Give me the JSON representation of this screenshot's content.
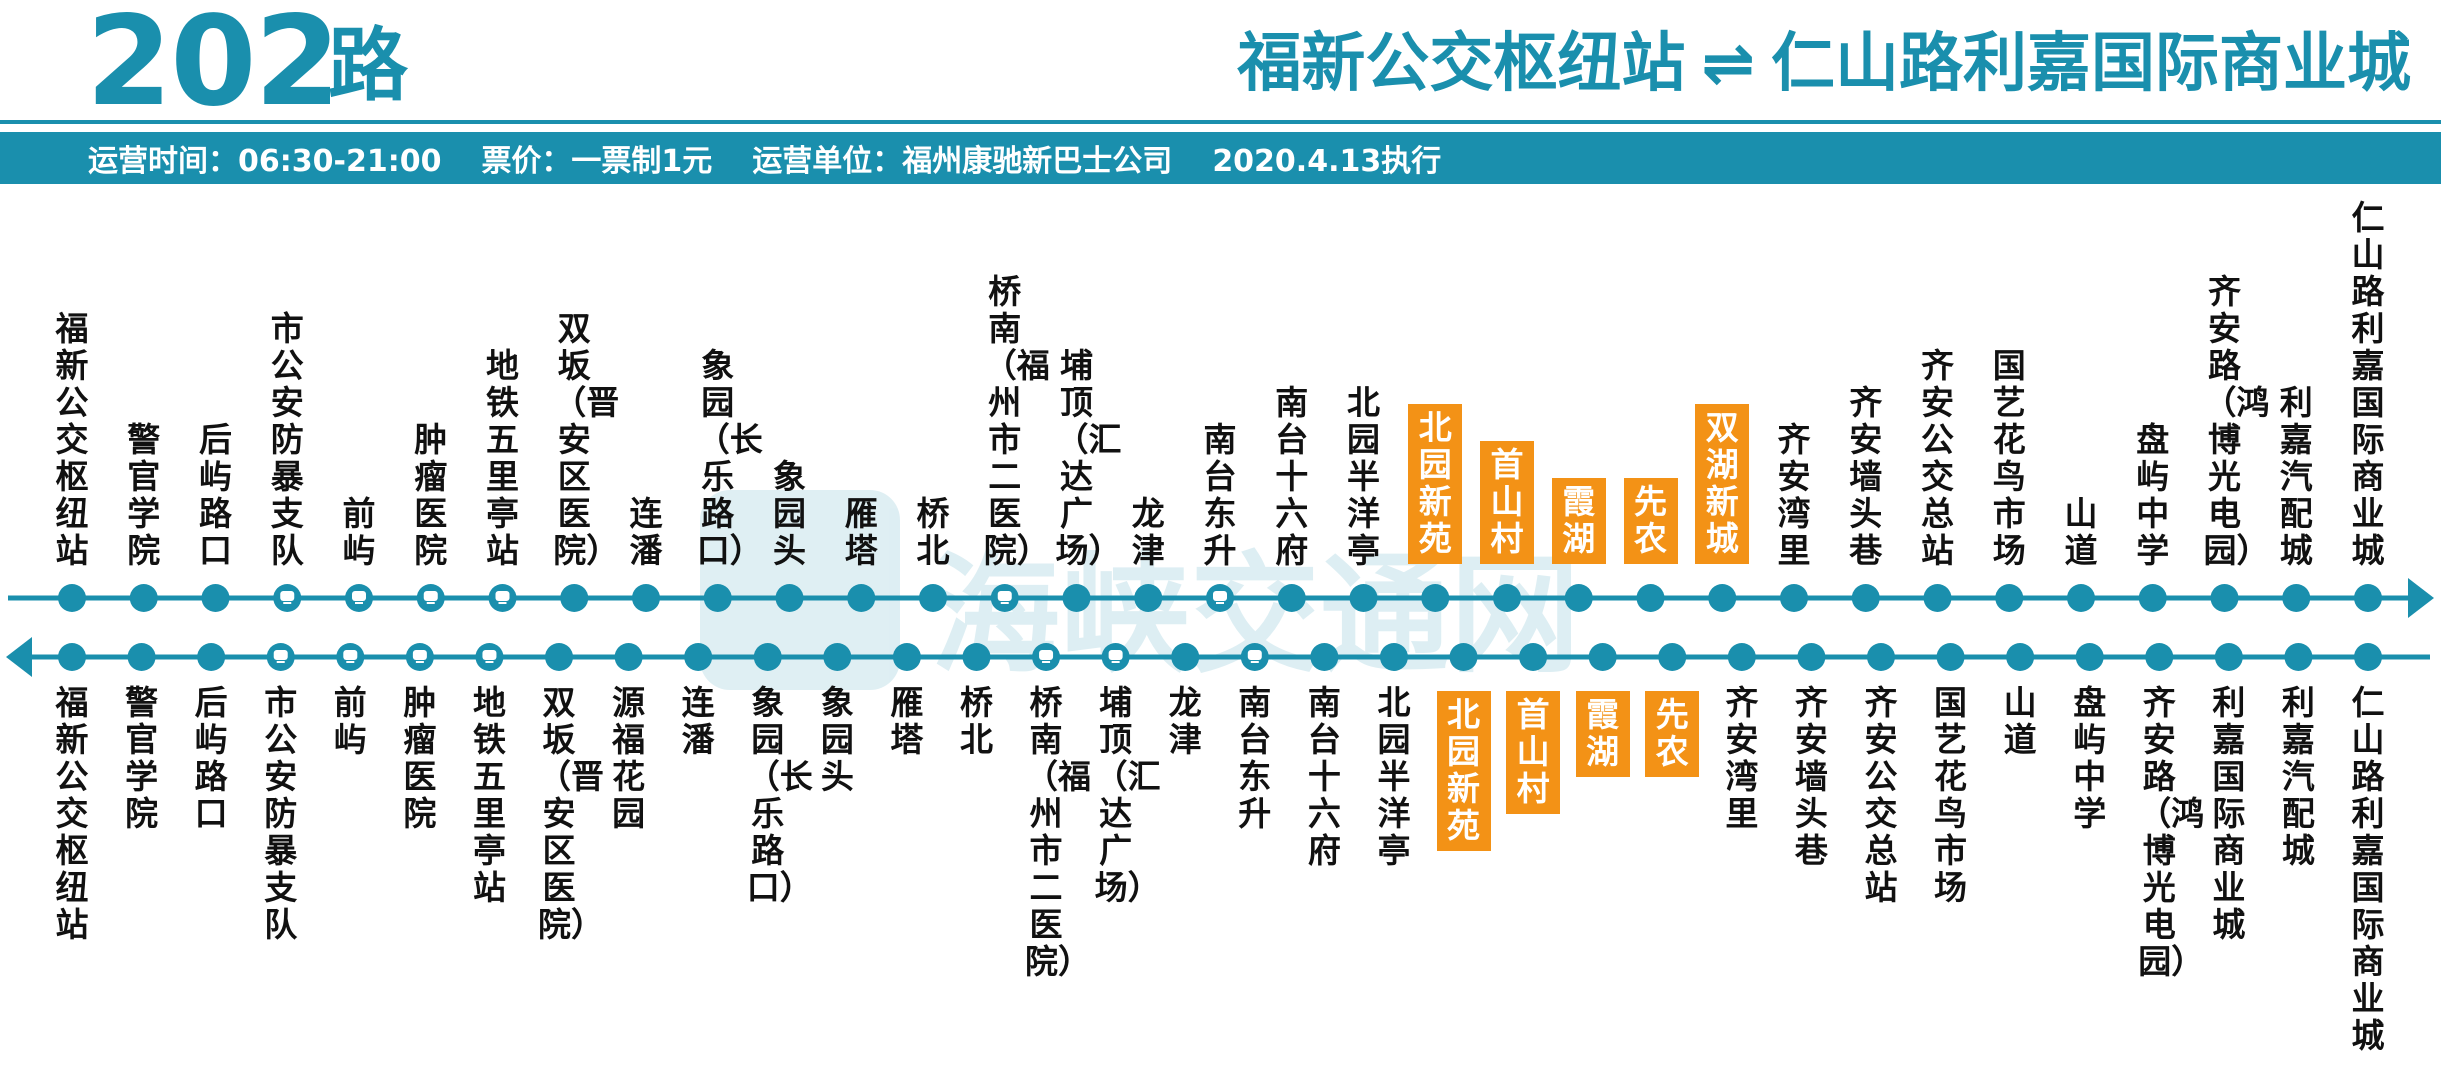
{
  "header": {
    "route_number": "202",
    "route_suffix": "路",
    "terminal_a": "福新公交枢纽站",
    "direction_symbol": "⇌",
    "terminal_b": "仁山路利嘉国际商业城"
  },
  "info": {
    "hours": "运营时间：06:30-21:00",
    "fare": "票价：一票制1元",
    "operator": "运营单位：福州康驰新巴士公司",
    "effective": "2020.4.13执行"
  },
  "watermark": {
    "text": "海峡交通网"
  },
  "colors": {
    "accent": "#1a8fad",
    "highlight": "#f39216",
    "text": "#111111"
  },
  "route_map": {
    "outbound": [
      {
        "name": "福新公交枢纽站"
      },
      {
        "name": "警官学院"
      },
      {
        "name": "后屿路口"
      },
      {
        "name": "市公安防暴支队",
        "icon": "metro-icon"
      },
      {
        "name": "前屿",
        "icon": "metro-icon"
      },
      {
        "name": "肿瘤医院",
        "icon": "metro-icon"
      },
      {
        "name": "地铁五里亭站",
        "icon": "metro-icon"
      },
      {
        "name": "双坂（晋安区医院）"
      },
      {
        "name": "连潘"
      },
      {
        "name": "象园（长乐路口）"
      },
      {
        "name": "象园头"
      },
      {
        "name": "雁塔"
      },
      {
        "name": "桥北"
      },
      {
        "name": "桥南（福州市二医院）",
        "icon": "metro-icon"
      },
      {
        "name": "埔顶（汇达广场）"
      },
      {
        "name": "龙津"
      },
      {
        "name": "南台东升",
        "icon": "metro-icon"
      },
      {
        "name": "南台十六府"
      },
      {
        "name": "北园半洋亭"
      },
      {
        "name": "北园新苑",
        "highlight": true
      },
      {
        "name": "首山村",
        "highlight": true
      },
      {
        "name": "霞湖",
        "highlight": true
      },
      {
        "name": "先农",
        "highlight": true
      },
      {
        "name": "双湖新城",
        "highlight": true
      },
      {
        "name": "齐安湾里"
      },
      {
        "name": "齐安墙头巷"
      },
      {
        "name": "齐安公交总站"
      },
      {
        "name": "国艺花鸟市场"
      },
      {
        "name": "山道"
      },
      {
        "name": "盘屿中学"
      },
      {
        "name": "齐安路（鸿博光电园）"
      },
      {
        "name": "利嘉汽配城"
      },
      {
        "name": "仁山路利嘉国际商业城"
      }
    ],
    "inbound": [
      {
        "name": "福新公交枢纽站"
      },
      {
        "name": "警官学院"
      },
      {
        "name": "后屿路口"
      },
      {
        "name": "市公安防暴支队",
        "icon": "metro-icon"
      },
      {
        "name": "前屿",
        "icon": "metro-icon"
      },
      {
        "name": "肿瘤医院",
        "icon": "metro-icon"
      },
      {
        "name": "地铁五里亭站",
        "icon": "metro-icon"
      },
      {
        "name": "双坂（晋安区医院）"
      },
      {
        "name": "源福花园"
      },
      {
        "name": "连潘"
      },
      {
        "name": "象园（长乐路口）"
      },
      {
        "name": "象园头"
      },
      {
        "name": "雁塔"
      },
      {
        "name": "桥北"
      },
      {
        "name": "桥南（福州市二医院）",
        "icon": "metro-icon"
      },
      {
        "name": "埔顶（汇达广场）",
        "icon": "metro-icon"
      },
      {
        "name": "龙津"
      },
      {
        "name": "南台东升",
        "icon": "metro-icon"
      },
      {
        "name": "南台十六府"
      },
      {
        "name": "北园半洋亭"
      },
      {
        "name": "北园新苑",
        "highlight": true
      },
      {
        "name": "首山村",
        "highlight": true
      },
      {
        "name": "霞湖",
        "highlight": true
      },
      {
        "name": "先农",
        "highlight": true
      },
      {
        "name": "齐安湾里"
      },
      {
        "name": "齐安墙头巷"
      },
      {
        "name": "齐安公交总站"
      },
      {
        "name": "国艺花鸟市场"
      },
      {
        "name": "山道"
      },
      {
        "name": "盘屿中学"
      },
      {
        "name": "齐安路（鸿博光电园）"
      },
      {
        "name": "利嘉国际商业城"
      },
      {
        "name": "利嘉汽配城"
      },
      {
        "name": "仁山路利嘉国际商业城"
      }
    ]
  }
}
